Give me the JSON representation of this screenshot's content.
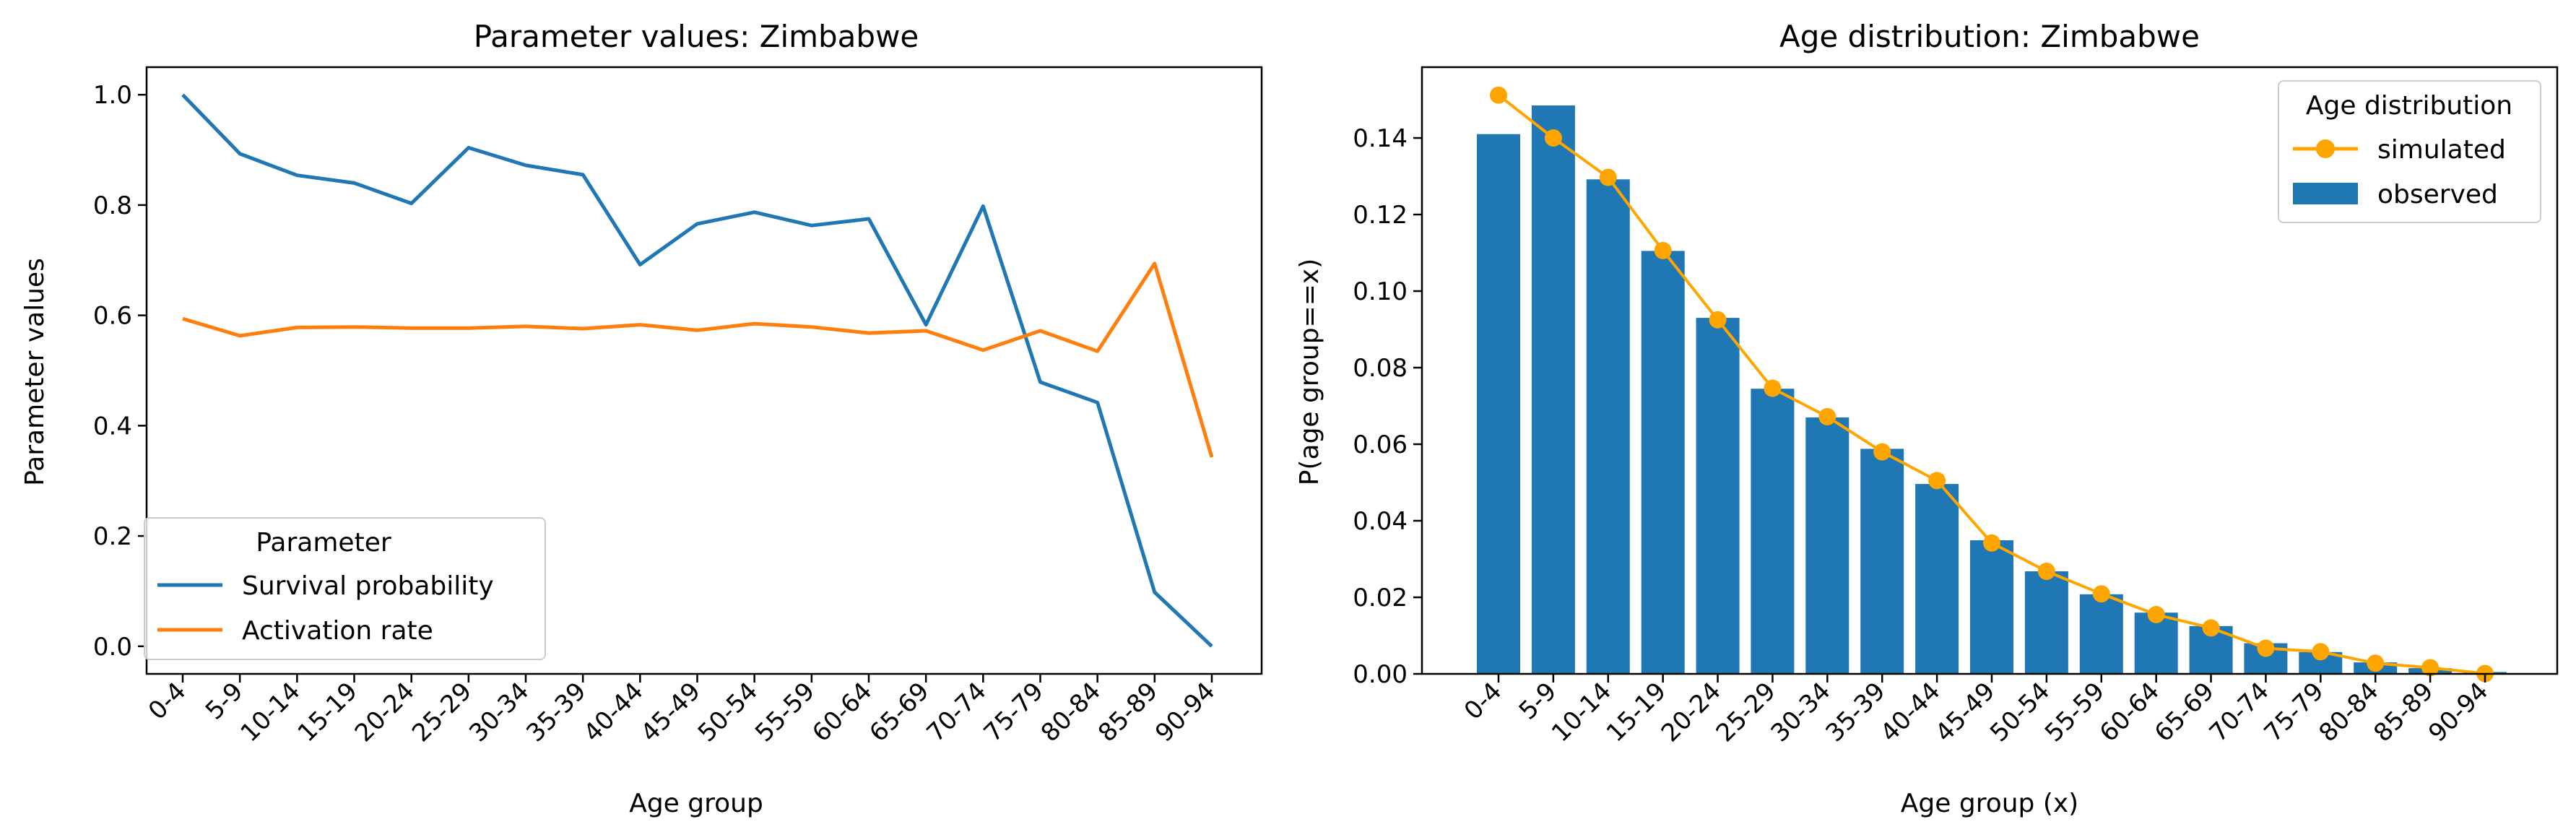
{
  "chart_data": [
    {
      "type": "line",
      "title": "Parameter values: Zimbabwe",
      "xlabel": "Age group",
      "ylabel": "Parameter values",
      "categories": [
        "0-4",
        "5-9",
        "10-14",
        "15-19",
        "20-24",
        "25-29",
        "30-34",
        "35-39",
        "40-44",
        "45-49",
        "50-54",
        "55-59",
        "60-64",
        "65-69",
        "70-74",
        "75-79",
        "80-84",
        "85-89",
        "90-94"
      ],
      "yticks": [
        "0.0",
        "0.2",
        "0.4",
        "0.6",
        "0.8",
        "1.0"
      ],
      "ylim": [
        -0.05,
        1.05
      ],
      "grid": false,
      "legend": {
        "title": "Parameter",
        "placement": "lower-left"
      },
      "series": [
        {
          "name": "Survival probability",
          "color": "#1f77b4",
          "values": [
            1.0,
            0.893,
            0.854,
            0.84,
            0.803,
            0.904,
            0.872,
            0.855,
            0.692,
            0.766,
            0.787,
            0.763,
            0.775,
            0.583,
            0.798,
            0.479,
            0.442,
            0.098,
            0.0
          ]
        },
        {
          "name": "Activation rate",
          "color": "#ff7f0e",
          "values": [
            0.594,
            0.563,
            0.578,
            0.579,
            0.577,
            0.577,
            0.58,
            0.576,
            0.583,
            0.573,
            0.585,
            0.579,
            0.568,
            0.572,
            0.537,
            0.572,
            0.535,
            0.694,
            0.343
          ]
        }
      ]
    },
    {
      "type": "bar",
      "title": "Age distribution: Zimbabwe",
      "xlabel": "Age group (x)",
      "ylabel": "P(age group==x)",
      "categories": [
        "0-4",
        "5-9",
        "10-14",
        "15-19",
        "20-24",
        "25-29",
        "30-34",
        "35-39",
        "40-44",
        "45-49",
        "50-54",
        "55-59",
        "60-64",
        "65-69",
        "70-74",
        "75-79",
        "80-84",
        "85-89",
        "90-94"
      ],
      "yticks": [
        "0.00",
        "0.02",
        "0.04",
        "0.06",
        "0.08",
        "0.10",
        "0.12",
        "0.14"
      ],
      "ylim": [
        0,
        0.1585
      ],
      "grid": false,
      "legend": {
        "title": "Age distribution",
        "placement": "upper-right"
      },
      "bar_series": {
        "name": "observed",
        "color": "#1f77b4",
        "values": [
          0.141,
          0.1485,
          0.1292,
          0.1105,
          0.093,
          0.0745,
          0.067,
          0.0588,
          0.0496,
          0.0349,
          0.0268,
          0.0208,
          0.016,
          0.0125,
          0.008,
          0.0057,
          0.003,
          0.0015,
          0.0005
        ]
      },
      "line_series": {
        "name": "simulated",
        "color": "#ffa500",
        "values": [
          0.1512,
          0.14,
          0.1297,
          0.1106,
          0.0925,
          0.0746,
          0.0672,
          0.058,
          0.0505,
          0.0342,
          0.0268,
          0.0209,
          0.0155,
          0.012,
          0.0067,
          0.0058,
          0.0028,
          0.0016,
          0.0001
        ]
      }
    }
  ]
}
